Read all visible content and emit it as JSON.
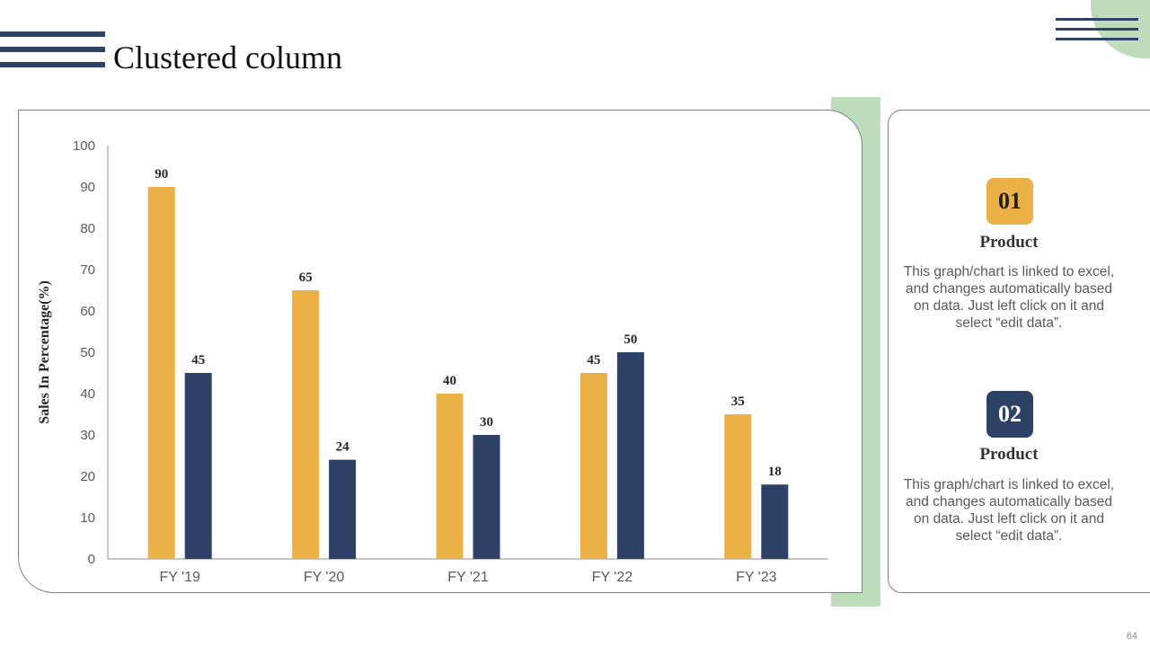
{
  "slide": {
    "title": "Clustered column",
    "page_number": "64"
  },
  "colors": {
    "series_1": "#ebb146",
    "series_2": "#2e4166",
    "accent_green": "#bcdcbc",
    "navy": "#2e4166"
  },
  "cards": [
    {
      "number": "01",
      "title": "Product",
      "description": "This graph/chart is linked to excel, and changes automatically based on data. Just left click on it and select “edit data”."
    },
    {
      "number": "02",
      "title": "Product",
      "description": "This graph/chart is linked to excel, and changes automatically based on data. Just left click on it and select “edit data”."
    }
  ],
  "chart_data": {
    "type": "bar",
    "title": "",
    "xlabel": "",
    "ylabel": "Sales In Percentage(%)",
    "categories": [
      "FY '19",
      "FY '20",
      "FY '21",
      "FY '22",
      "FY '23"
    ],
    "series": [
      {
        "values": [
          90,
          65,
          40,
          45,
          35
        ],
        "color": "#ebb146"
      },
      {
        "values": [
          45,
          24,
          30,
          50,
          18
        ],
        "color": "#2e4166"
      }
    ],
    "ylim": [
      0,
      100
    ],
    "yticks": [
      0,
      10,
      20,
      30,
      40,
      50,
      60,
      70,
      80,
      90,
      100
    ],
    "grid": false,
    "legend": "none",
    "data_labels": true
  }
}
